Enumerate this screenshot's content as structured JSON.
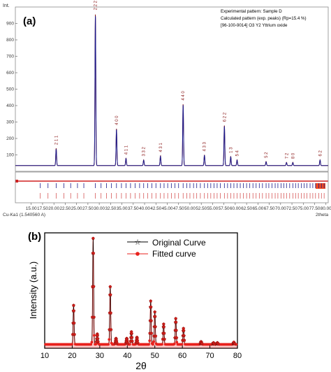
{
  "chart_data": [
    {
      "type": "line",
      "panel_label": "(a)",
      "y_unit": "Int.",
      "xlabel": "2theta",
      "x_ticks": [
        "15.00",
        "17.50",
        "20.00",
        "22.50",
        "25.00",
        "27.50",
        "30.00",
        "32.50",
        "35.00",
        "37.50",
        "40.00",
        "42.50",
        "45.00",
        "47.50",
        "50.00",
        "52.50",
        "55.00",
        "57.50",
        "60.00",
        "62.50",
        "65.00",
        "67.50",
        "70.00",
        "72.50",
        "75.00",
        "77.50",
        "80.00"
      ],
      "y_ticks": [
        "100",
        "200",
        "300",
        "400",
        "500",
        "600",
        "700",
        "800",
        "900"
      ],
      "xlim": [
        11.5,
        80.5
      ],
      "ylim": [
        0,
        1000
      ],
      "wavelength_label": "Cu-Ka1 (1.540560 A)",
      "legend": [
        {
          "text": "Experimental pattern: Sample D",
          "color": "#1a1a8c"
        },
        {
          "text": "Calculated pattern (exp. peaks) (Rp=15.4 %)",
          "color": "#8b1a1a"
        },
        {
          "text": "[96-100-9014] O3 Y2 Yttrium oxide",
          "color": "#8b1a1a"
        }
      ],
      "series": [
        {
          "name": "Experimental pattern: Sample D",
          "baseline": 35,
          "peaks": [
            {
              "x": 20.5,
              "y": 140,
              "hkl": "2 1 1"
            },
            {
              "x": 29.15,
              "y": 960,
              "hkl": "2 2 2"
            },
            {
              "x": 33.8,
              "y": 260,
              "hkl": "4 0 0"
            },
            {
              "x": 35.9,
              "y": 80,
              "hkl": "4 1 1"
            },
            {
              "x": 39.8,
              "y": 70,
              "hkl": "3 3 2"
            },
            {
              "x": 43.5,
              "y": 95,
              "hkl": "4 3 1"
            },
            {
              "x": 48.5,
              "y": 410,
              "hkl": "4 4 0"
            },
            {
              "x": 53.2,
              "y": 100,
              "hkl": "4 3 3"
            },
            {
              "x": 57.6,
              "y": 280,
              "hkl": "6 2 2"
            },
            {
              "x": 59.0,
              "y": 90,
              "hkl": "1 3"
            },
            {
              "x": 60.4,
              "y": 70,
              "hkl": "5 4"
            },
            {
              "x": 66.8,
              "y": 60,
              "hkl": "5 2"
            },
            {
              "x": 71.3,
              "y": 55,
              "hkl": "7 2"
            },
            {
              "x": 72.7,
              "y": 55,
              "hkl": "8 0"
            },
            {
              "x": 78.7,
              "y": 70,
              "hkl": "6 2"
            }
          ]
        },
        {
          "name": "Calculated pattern (exp. peaks) (Rp=15.4 %)",
          "baseline": 35,
          "peaks": [
            {
              "x": 20.5,
              "y": 135
            },
            {
              "x": 29.15,
              "y": 950
            },
            {
              "x": 33.8,
              "y": 255
            },
            {
              "x": 35.9,
              "y": 78
            },
            {
              "x": 39.8,
              "y": 68
            },
            {
              "x": 43.5,
              "y": 92
            },
            {
              "x": 48.5,
              "y": 405
            },
            {
              "x": 53.2,
              "y": 98
            },
            {
              "x": 57.6,
              "y": 275
            },
            {
              "x": 59.0,
              "y": 88
            },
            {
              "x": 60.4,
              "y": 68
            },
            {
              "x": 66.8,
              "y": 58
            },
            {
              "x": 71.3,
              "y": 53
            },
            {
              "x": 72.7,
              "y": 53
            },
            {
              "x": 78.7,
              "y": 68
            }
          ]
        }
      ],
      "peak_markers_x": [
        17.0,
        18.7,
        20.5,
        22.2,
        23.7,
        25.2,
        26.6,
        29.15,
        30.4,
        31.6,
        32.7,
        33.8,
        34.9,
        35.9,
        36.9,
        37.9,
        38.9,
        39.8,
        40.7,
        41.6,
        42.5,
        43.5,
        44.3,
        45.1,
        45.9,
        46.7,
        47.5,
        48.5,
        49.3,
        50.0,
        50.8,
        51.5,
        52.3,
        53.2,
        53.9,
        54.6,
        55.3,
        56.0,
        56.7,
        57.6,
        58.3,
        59.0,
        59.7,
        60.4,
        61.1,
        61.8,
        62.5,
        63.2,
        63.9,
        64.6,
        65.3,
        66.0,
        66.8,
        67.4,
        68.1,
        68.8,
        69.4,
        70.1,
        70.7,
        71.3,
        72.0,
        72.7,
        73.3,
        73.9,
        74.6,
        75.2,
        75.8,
        76.5,
        77.1,
        77.7,
        78.4,
        79.0,
        79.6
      ]
    },
    {
      "type": "line",
      "panel_label": "(b)",
      "xlabel": "2θ",
      "ylabel": "Intensity (a.u.)",
      "x_ticks": [
        "10",
        "20",
        "30",
        "40",
        "50",
        "60",
        "70",
        "80"
      ],
      "xlim": [
        10,
        80
      ],
      "ylim": [
        0,
        1050
      ],
      "series": [
        {
          "name": "Original Curve",
          "color": "#000000",
          "marker": "star",
          "baseline": 35,
          "peaks": [
            {
              "x": 20.5,
              "y": 390
            },
            {
              "x": 27.6,
              "y": 1000
            },
            {
              "x": 29.1,
              "y": 130
            },
            {
              "x": 33.8,
              "y": 560
            },
            {
              "x": 35.9,
              "y": 90
            },
            {
              "x": 39.8,
              "y": 90
            },
            {
              "x": 41.5,
              "y": 150
            },
            {
              "x": 43.5,
              "y": 100
            },
            {
              "x": 48.5,
              "y": 430
            },
            {
              "x": 50.0,
              "y": 330
            },
            {
              "x": 53.2,
              "y": 220
            },
            {
              "x": 57.6,
              "y": 270
            },
            {
              "x": 60.4,
              "y": 180
            },
            {
              "x": 66.8,
              "y": 60
            },
            {
              "x": 71.3,
              "y": 50
            },
            {
              "x": 72.7,
              "y": 50
            },
            {
              "x": 78.7,
              "y": 55
            }
          ]
        },
        {
          "name": "Fitted curve",
          "color": "#e8211c",
          "marker": "circle",
          "baseline": 35,
          "peaks": [
            {
              "x": 20.5,
              "y": 390
            },
            {
              "x": 27.6,
              "y": 1000
            },
            {
              "x": 29.1,
              "y": 130
            },
            {
              "x": 33.8,
              "y": 560
            },
            {
              "x": 35.9,
              "y": 90
            },
            {
              "x": 39.8,
              "y": 90
            },
            {
              "x": 41.5,
              "y": 150
            },
            {
              "x": 43.5,
              "y": 100
            },
            {
              "x": 48.5,
              "y": 430
            },
            {
              "x": 50.0,
              "y": 330
            },
            {
              "x": 53.2,
              "y": 220
            },
            {
              "x": 57.6,
              "y": 270
            },
            {
              "x": 60.4,
              "y": 180
            },
            {
              "x": 66.8,
              "y": 60
            },
            {
              "x": 71.3,
              "y": 50
            },
            {
              "x": 72.7,
              "y": 50
            },
            {
              "x": 78.7,
              "y": 55
            }
          ]
        }
      ]
    }
  ]
}
